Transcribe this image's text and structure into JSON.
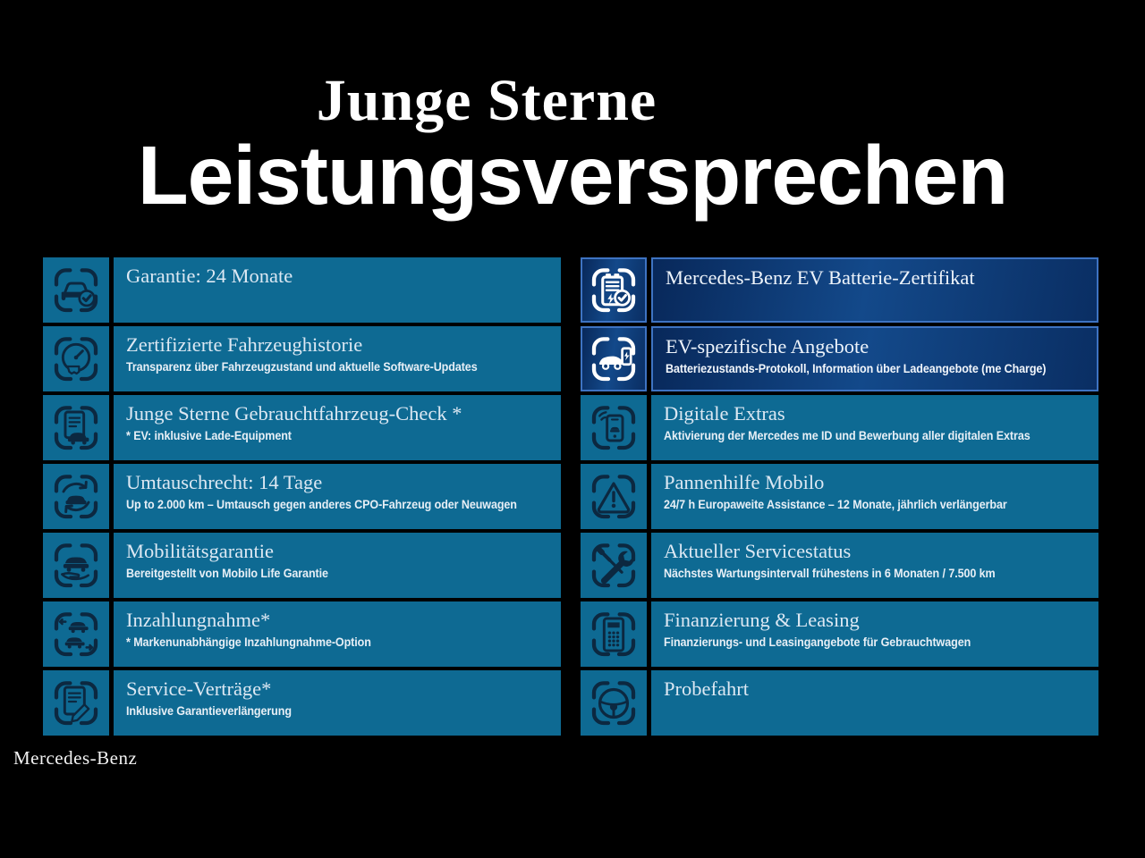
{
  "header": {
    "brand_line": "Junge Sterne",
    "title": "Leistungsversprechen"
  },
  "footer": {
    "brand": "Mercedes-Benz"
  },
  "colors": {
    "background": "#000000",
    "card_teal": "#0e6a93",
    "icon_navy": "#0c2840",
    "ev_card_navy": "#0e3a72",
    "ev_border_blue": "#3e73c2",
    "heading_white": "#ffffff",
    "title_text": "#dce8f3"
  },
  "columns": {
    "left": [
      {
        "icon": "car-check-icon",
        "title": "Garantie: 24 Monate",
        "subtitle": "",
        "variant": "standard"
      },
      {
        "icon": "speedometer-icon",
        "title": "Zertifizierte Fahrzeughistorie",
        "subtitle": "Transparenz über Fahrzeugzustand und aktuelle Software-Updates",
        "variant": "standard"
      },
      {
        "icon": "checklist-car-icon",
        "title": "Junge Sterne Gebrauchtfahrzeug-Check *",
        "subtitle": "* EV: inklusive Lade-Equipment",
        "variant": "standard"
      },
      {
        "icon": "exchange-circle-icon",
        "title": "Umtauschrecht: 14 Tage",
        "subtitle": "Up to 2.000 km – Umtausch gegen anderes CPO-Fahrzeug oder Neuwagen",
        "variant": "standard"
      },
      {
        "icon": "car-hand-icon",
        "title": "Mobilitätsgarantie",
        "subtitle": "Bereitgestellt von Mobilo Life Garantie",
        "variant": "standard"
      },
      {
        "icon": "trade-in-icon",
        "title": "Inzahlungnahme*",
        "subtitle": "* Markenunabhängige Inzahlungnahme-Option",
        "variant": "standard"
      },
      {
        "icon": "contract-pen-icon",
        "title": "Service-Verträge*",
        "subtitle": "Inklusive Garantieverlängerung",
        "variant": "standard"
      }
    ],
    "right": [
      {
        "icon": "battery-check-icon",
        "title": "Mercedes-Benz EV Batterie-Zertifikat",
        "subtitle": "",
        "variant": "ev"
      },
      {
        "icon": "ev-charging-icon",
        "title": "EV-spezifische Angebote",
        "subtitle": "Batteriezustands-Protokoll, Information über Ladeangebote (me Charge)",
        "variant": "ev"
      },
      {
        "icon": "phone-digital-icon",
        "title": "Digitale Extras",
        "subtitle": "Aktivierung der Mercedes me ID und Bewerbung aller digitalen Extras",
        "variant": "standard"
      },
      {
        "icon": "warning-triangle-icon",
        "title": "Pannenhilfe Mobilo",
        "subtitle": "24/7 h Europaweite Assistance – 12 Monate, jährlich verlängerbar",
        "variant": "standard"
      },
      {
        "icon": "tools-icon",
        "title": "Aktueller Servicestatus",
        "subtitle": "Nächstes Wartungsintervall frühestens in 6 Monaten / 7.500 km",
        "variant": "standard"
      },
      {
        "icon": "calculator-icon",
        "title": "Finanzierung & Leasing",
        "subtitle": "Finanzierungs- und Leasingangebote für Gebrauchtwagen",
        "variant": "standard"
      },
      {
        "icon": "steering-wheel-icon",
        "title": "Probefahrt",
        "subtitle": "",
        "variant": "standard"
      }
    ]
  }
}
